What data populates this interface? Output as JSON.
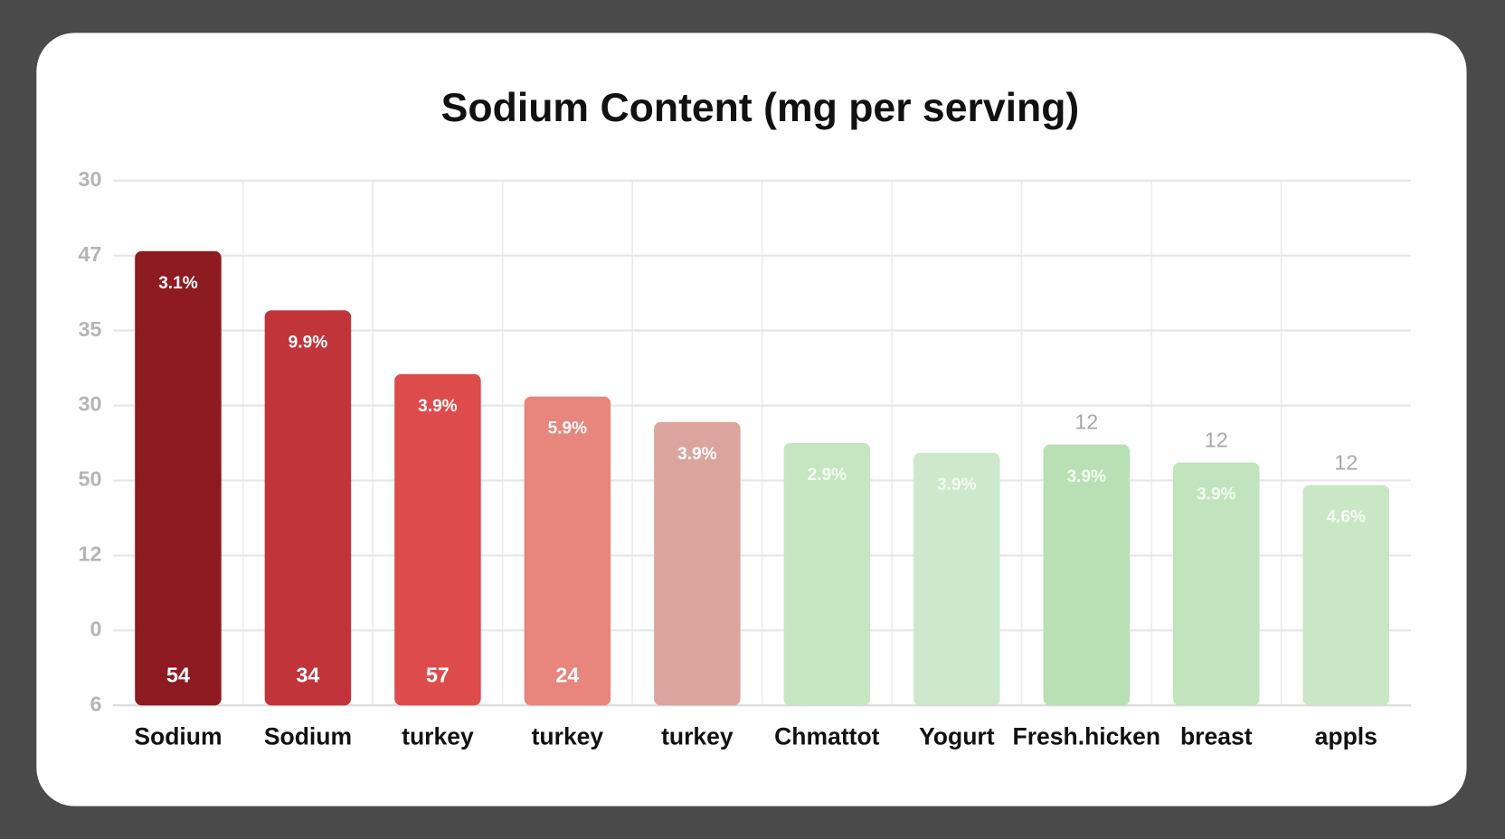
{
  "chart_data": {
    "type": "bar",
    "title": "Sodium Content (mg per serving)",
    "categories": [
      "Sodium",
      "Sodium",
      "turkey",
      "turkey",
      "turkey",
      "Chmattot",
      "Yogurt",
      "Fresh.hicken",
      "breast",
      "appls"
    ],
    "values": [
      6.06,
      5.27,
      4.42,
      4.12,
      3.78,
      3.5,
      3.37,
      3.48,
      3.24,
      2.94
    ],
    "colors": [
      "#8e1b22",
      "#c0343a",
      "#dd4c4b",
      "#e8857c",
      "#dba59d",
      "#c6e6c2",
      "#cde8ca",
      "#b9dfb5",
      "#c1e3bd",
      "#c9e7c5"
    ],
    "inner_labels": [
      "3.1%",
      "9.9%",
      "3.9%",
      "5.9%",
      "3.9%",
      "2.9%",
      "3.9%",
      "3.9%",
      "3.9%",
      "4.6%"
    ],
    "bottom_labels": [
      "54",
      "34",
      "57",
      "24",
      null,
      null,
      null,
      null,
      null,
      null
    ],
    "top_labels": [
      null,
      null,
      null,
      null,
      null,
      null,
      null,
      "12",
      "12",
      "12"
    ],
    "ylim": [
      0,
      7
    ],
    "yticks": [
      {
        "value": 0,
        "label": "6"
      },
      {
        "value": 1,
        "label": "0"
      },
      {
        "value": 2,
        "label": "12"
      },
      {
        "value": 3,
        "label": "50"
      },
      {
        "value": 4,
        "label": "30"
      },
      {
        "value": 5,
        "label": "35"
      },
      {
        "value": 6,
        "label": "47"
      },
      {
        "value": 7,
        "label": "30"
      }
    ],
    "grid": true
  }
}
